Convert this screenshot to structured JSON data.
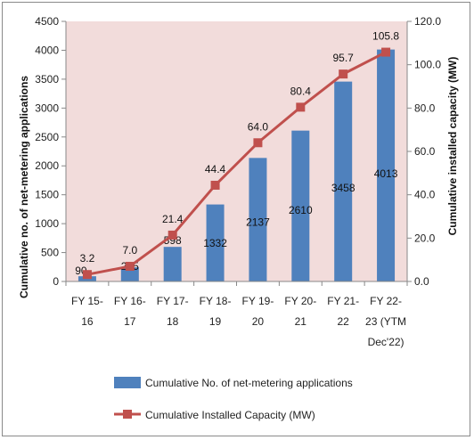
{
  "chart_data": {
    "type": "bar",
    "categories": [
      [
        "FY 15-",
        "16"
      ],
      [
        "FY 16-",
        "17"
      ],
      [
        "FY 17-",
        "18"
      ],
      [
        "FY 18-",
        "19"
      ],
      [
        "FY 19-",
        "20"
      ],
      [
        "FY 20-",
        "21"
      ],
      [
        "FY 21-",
        "22"
      ],
      [
        "FY 22-",
        "23 (YTM",
        "Dec'22)"
      ]
    ],
    "series": [
      {
        "name": "Cumulative No. of net-metering applications",
        "type": "bar",
        "axis": "left",
        "color": "#4f81bd",
        "values": [
          90,
          245,
          598,
          1332,
          2137,
          2610,
          3458,
          4013
        ],
        "labels": [
          "90",
          "245",
          "598",
          "1332",
          "2137",
          "2610",
          "3458",
          "4013"
        ]
      },
      {
        "name": "Cumulative Installed Capacity (MW)",
        "type": "line",
        "axis": "right",
        "color": "#c0504d",
        "values": [
          3.2,
          7.0,
          21.4,
          44.4,
          64.0,
          80.4,
          95.7,
          105.8
        ],
        "labels": [
          "3.2",
          "7.0",
          "21.4",
          "44.4",
          "64.0",
          "80.4",
          "95.7",
          "105.8"
        ]
      }
    ],
    "ylabel_left": "Cumulative no. of net-metering applications",
    "ylabel_right": "Cumulative installed capacity (MW)",
    "ylim_left": [
      0,
      4500
    ],
    "yticks_left": [
      "0",
      "500",
      "1000",
      "1500",
      "2000",
      "2500",
      "3000",
      "3500",
      "4000",
      "4500"
    ],
    "ylim_right": [
      0,
      120
    ],
    "yticks_right": [
      "0.0",
      "20.0",
      "40.0",
      "60.0",
      "80.0",
      "100.0",
      "120.0"
    ],
    "plot_background": "#f2dcdb",
    "grid": false,
    "legend_position": "bottom"
  }
}
